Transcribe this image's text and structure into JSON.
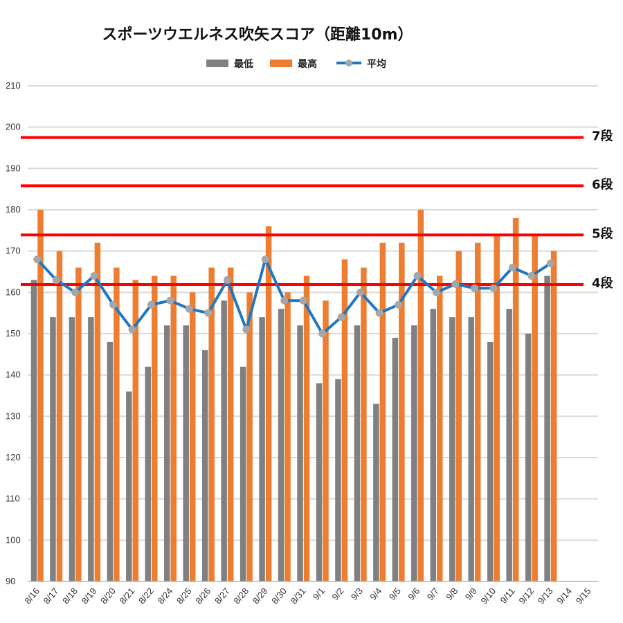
{
  "chart_data": {
    "type": "bar",
    "title": "スポーツウエルネス吹矢スコア（距離10m）",
    "xlabel": "",
    "ylabel": "",
    "ylim": [
      90,
      210
    ],
    "yticks": [
      90,
      100,
      110,
      120,
      130,
      140,
      150,
      160,
      170,
      180,
      190,
      200,
      210
    ],
    "grid": true,
    "legend_position": "top",
    "categories": [
      "8/16",
      "8/17",
      "8/18",
      "8/19",
      "8/20",
      "8/21",
      "8/22",
      "8/24",
      "8/25",
      "8/26",
      "8/27",
      "8/28",
      "8/29",
      "8/30",
      "8/31",
      "9/1",
      "9/2",
      "9/3",
      "9/4",
      "9/5",
      "9/6",
      "9/7",
      "9/8",
      "9/9",
      "9/10",
      "9/11",
      "9/12",
      "9/13",
      "9/14",
      "9/15"
    ],
    "series": [
      {
        "name": "最低",
        "type": "bar",
        "color": "#808080",
        "values": [
          163,
          154,
          154,
          154,
          148,
          136,
          142,
          152,
          152,
          146,
          158,
          142,
          154,
          156,
          152,
          138,
          139,
          152,
          133,
          149,
          152,
          156,
          154,
          154,
          148,
          156,
          150,
          164,
          null,
          null
        ]
      },
      {
        "name": "最高",
        "type": "bar",
        "color": "#ED7D31",
        "values": [
          180,
          170,
          166,
          172,
          166,
          163,
          164,
          164,
          160,
          166,
          166,
          160,
          176,
          160,
          164,
          158,
          168,
          166,
          172,
          172,
          180,
          164,
          170,
          172,
          174,
          178,
          174,
          170,
          null,
          null
        ]
      },
      {
        "name": "平均",
        "type": "line",
        "color": "#1F77C4",
        "marker_color": "#A6A6A6",
        "values": [
          168,
          163,
          160,
          164,
          157,
          151,
          157,
          158,
          156,
          155,
          163,
          151,
          168,
          158,
          158,
          150,
          154,
          160,
          155,
          157,
          164,
          160,
          162,
          161,
          161,
          166,
          164,
          167,
          null,
          null
        ]
      }
    ],
    "reference_lines": [
      {
        "label": "7段",
        "value": 197.5,
        "color": "#FF0000"
      },
      {
        "label": "6段",
        "value": 185.8,
        "color": "#FF0000"
      },
      {
        "label": "5段",
        "value": 173.9,
        "color": "#FF0000"
      },
      {
        "label": "4段",
        "value": 161.9,
        "color": "#FF0000"
      }
    ]
  }
}
